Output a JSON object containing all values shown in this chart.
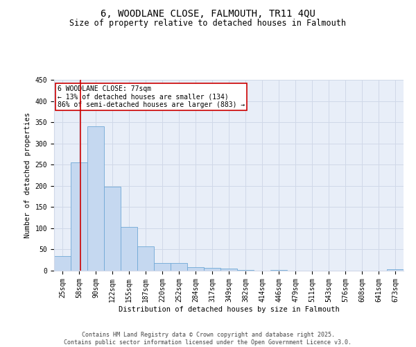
{
  "title": "6, WOODLANE CLOSE, FALMOUTH, TR11 4QU",
  "subtitle": "Size of property relative to detached houses in Falmouth",
  "xlabel": "Distribution of detached houses by size in Falmouth",
  "ylabel": "Number of detached properties",
  "categories": [
    "25sqm",
    "58sqm",
    "90sqm",
    "122sqm",
    "155sqm",
    "187sqm",
    "220sqm",
    "252sqm",
    "284sqm",
    "317sqm",
    "349sqm",
    "382sqm",
    "414sqm",
    "446sqm",
    "479sqm",
    "511sqm",
    "543sqm",
    "576sqm",
    "608sqm",
    "641sqm",
    "673sqm"
  ],
  "values": [
    35,
    255,
    340,
    198,
    103,
    57,
    18,
    18,
    9,
    7,
    5,
    2,
    0,
    2,
    0,
    0,
    0,
    0,
    0,
    0,
    4
  ],
  "bar_color": "#c5d8f0",
  "bar_edge_color": "#6fa8d6",
  "grid_color": "#d0d8e8",
  "background_color": "#e8eef8",
  "vline_color": "#cc0000",
  "annotation_text": "6 WOODLANE CLOSE: 77sqm\n← 13% of detached houses are smaller (134)\n86% of semi-detached houses are larger (883) →",
  "annotation_box_color": "#ffffff",
  "annotation_box_edge_color": "#cc0000",
  "annotation_fontsize": 7,
  "footer_text": "Contains HM Land Registry data © Crown copyright and database right 2025.\nContains public sector information licensed under the Open Government Licence v3.0.",
  "ylim": [
    0,
    450
  ],
  "yticks": [
    0,
    50,
    100,
    150,
    200,
    250,
    300,
    350,
    400,
    450
  ],
  "title_fontsize": 10,
  "subtitle_fontsize": 8.5,
  "axis_label_fontsize": 7.5,
  "tick_fontsize": 7,
  "footer_fontsize": 6
}
